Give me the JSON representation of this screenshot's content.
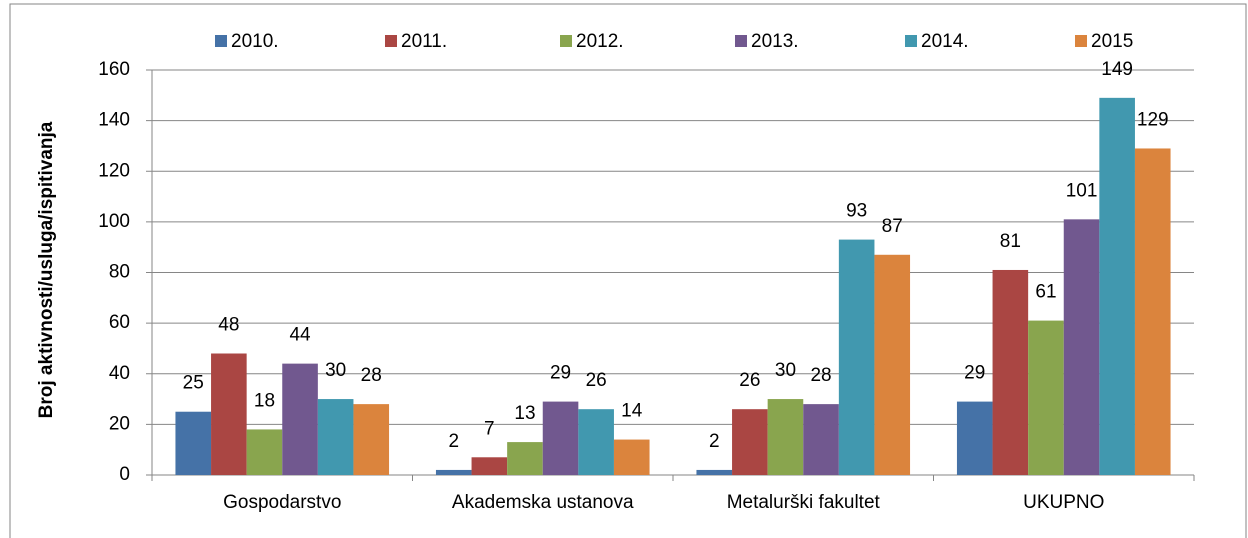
{
  "chart_data": {
    "type": "bar",
    "y_label": "Broj aktivnosti/usluga/ispitivanja",
    "categories": [
      "Gospodarstvo",
      "Akademska ustanova",
      "Metalurški fakultet",
      "UKUPNO"
    ],
    "series": [
      {
        "name": "2010.",
        "color": "#4572a7",
        "values": [
          25,
          2,
          2,
          29
        ]
      },
      {
        "name": "2011.",
        "color": "#aa4643",
        "values": [
          48,
          7,
          26,
          81
        ]
      },
      {
        "name": "2012.",
        "color": "#89a54e",
        "values": [
          18,
          13,
          30,
          61
        ]
      },
      {
        "name": "2013.",
        "color": "#71588f",
        "values": [
          44,
          29,
          28,
          101
        ]
      },
      {
        "name": "2014.",
        "color": "#4198af",
        "values": [
          30,
          26,
          93,
          149
        ]
      },
      {
        "name": "2015",
        "color": "#db843d",
        "values": [
          28,
          14,
          87,
          129
        ]
      }
    ],
    "ylim": [
      0,
      160
    ],
    "yticks": [
      0,
      20,
      40,
      60,
      80,
      100,
      120,
      140,
      160
    ],
    "grid": true,
    "legend": "top"
  }
}
